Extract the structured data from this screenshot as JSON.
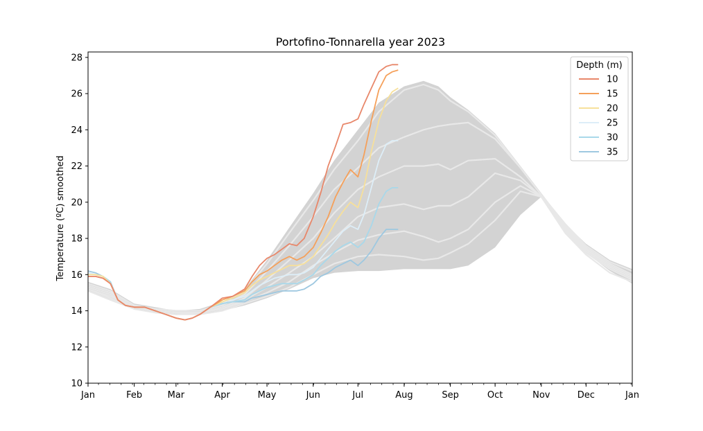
{
  "chart_data": {
    "type": "line",
    "title": "Portofino-Tonnarella year 2023",
    "xlabel": "",
    "ylabel": "Temperature (ºC) smoothed",
    "xlim": [
      0,
      365
    ],
    "ylim": [
      10,
      28.3
    ],
    "yticks": [
      10,
      12,
      14,
      16,
      18,
      20,
      22,
      24,
      26,
      28
    ],
    "xticks": [
      {
        "day": 0,
        "label": "Jan"
      },
      {
        "day": 31,
        "label": "Feb"
      },
      {
        "day": 59,
        "label": "Mar"
      },
      {
        "day": 90,
        "label": "Apr"
      },
      {
        "day": 120,
        "label": "May"
      },
      {
        "day": 151,
        "label": "Jun"
      },
      {
        "day": 181,
        "label": "Jul"
      },
      {
        "day": 212,
        "label": "Aug"
      },
      {
        "day": 243,
        "label": "Sep"
      },
      {
        "day": 273,
        "label": "Oct"
      },
      {
        "day": 304,
        "label": "Nov"
      },
      {
        "day": 334,
        "label": "Dec"
      },
      {
        "day": 365,
        "label": "Jan"
      }
    ],
    "legend": {
      "title": "Depth (m)",
      "placement": "top-right"
    },
    "envelope": {
      "color": "#d3d3d3",
      "x": [
        0,
        15,
        31,
        45,
        59,
        75,
        90,
        105,
        120,
        135,
        151,
        165,
        181,
        195,
        212,
        225,
        235,
        243,
        255,
        273,
        290,
        304,
        320,
        334,
        350,
        365
      ],
      "upper": [
        15.6,
        15.2,
        14.4,
        14.2,
        14.0,
        14.1,
        14.5,
        15.2,
        16.8,
        18.6,
        20.5,
        22.3,
        24.0,
        25.5,
        26.4,
        26.7,
        26.4,
        25.8,
        25.1,
        23.8,
        22.0,
        20.5,
        18.8,
        17.7,
        16.8,
        16.3
      ],
      "lower": [
        15.1,
        14.6,
        14.1,
        13.9,
        13.8,
        13.8,
        14.0,
        14.3,
        14.7,
        15.2,
        15.8,
        16.1,
        16.2,
        16.2,
        16.3,
        16.3,
        16.3,
        16.3,
        16.5,
        17.5,
        19.3,
        20.3,
        18.8,
        17.2,
        16.2,
        15.5
      ]
    },
    "climatology_lines": {
      "color": "#e8e8e8",
      "x": [
        0,
        15,
        31,
        45,
        59,
        75,
        90,
        105,
        120,
        135,
        151,
        165,
        181,
        195,
        212,
        225,
        235,
        243,
        255,
        273,
        290,
        304,
        320,
        334,
        350,
        365
      ],
      "lines": [
        [
          15.5,
          15.1,
          14.3,
          14.1,
          14.0,
          14.0,
          14.4,
          15.1,
          16.6,
          18.3,
          20.1,
          21.8,
          23.4,
          25.0,
          26.2,
          26.5,
          26.2,
          25.6,
          25.0,
          23.7,
          21.9,
          20.4,
          18.8,
          17.6,
          16.7,
          16.2
        ],
        [
          15.4,
          15.0,
          14.3,
          14.1,
          14.0,
          14.0,
          14.3,
          14.9,
          16.2,
          17.6,
          19.2,
          20.7,
          21.9,
          23.0,
          23.6,
          24.0,
          24.2,
          24.3,
          24.4,
          23.5,
          21.9,
          20.4,
          18.7,
          17.5,
          16.6,
          16.0
        ],
        [
          15.3,
          14.9,
          14.2,
          14.0,
          13.9,
          13.9,
          14.2,
          14.7,
          15.7,
          16.8,
          18.0,
          19.4,
          20.7,
          21.4,
          22.0,
          22.0,
          22.1,
          21.8,
          22.3,
          22.4,
          21.4,
          20.3,
          18.6,
          17.4,
          16.5,
          15.9
        ],
        [
          15.2,
          14.8,
          14.2,
          14.0,
          13.9,
          13.9,
          14.1,
          14.6,
          15.3,
          16.1,
          17.0,
          18.0,
          19.2,
          19.7,
          19.9,
          19.6,
          19.8,
          19.8,
          20.3,
          21.6,
          21.2,
          20.3,
          18.5,
          17.3,
          16.4,
          15.8
        ],
        [
          15.2,
          14.7,
          14.1,
          13.9,
          13.8,
          13.9,
          14.1,
          14.5,
          15.0,
          15.6,
          16.5,
          17.2,
          17.9,
          18.2,
          18.4,
          18.1,
          17.8,
          18.0,
          18.5,
          20.0,
          20.9,
          20.3,
          18.4,
          17.2,
          16.3,
          15.7
        ],
        [
          15.1,
          14.6,
          14.1,
          13.9,
          13.8,
          13.8,
          14.0,
          14.4,
          14.8,
          15.3,
          16.0,
          16.6,
          17.0,
          17.1,
          17.0,
          16.8,
          16.9,
          17.2,
          17.7,
          19.0,
          20.6,
          20.3,
          18.3,
          17.1,
          16.1,
          15.6
        ]
      ]
    },
    "series": [
      {
        "name": "10",
        "color": "#e8876a",
        "x": [
          0,
          5,
          10,
          15,
          20,
          25,
          31,
          38,
          45,
          52,
          59,
          65,
          70,
          75,
          82,
          90,
          97,
          105,
          110,
          115,
          120,
          125,
          130,
          135,
          140,
          145,
          151,
          156,
          161,
          166,
          171,
          176,
          181,
          185,
          190,
          195,
          200,
          204,
          208
        ],
        "y": [
          15.9,
          15.9,
          15.8,
          15.5,
          14.6,
          14.3,
          14.2,
          14.2,
          14.0,
          13.8,
          13.6,
          13.5,
          13.6,
          13.8,
          14.2,
          14.7,
          14.8,
          15.2,
          15.9,
          16.5,
          16.9,
          17.1,
          17.4,
          17.7,
          17.6,
          18.0,
          19.2,
          20.5,
          22.0,
          23.1,
          24.3,
          24.4,
          24.6,
          25.4,
          26.3,
          27.2,
          27.5,
          27.6,
          27.6
        ]
      },
      {
        "name": "15",
        "color": "#f5a05a",
        "x": [
          0,
          5,
          10,
          15,
          20,
          25,
          31,
          38,
          45,
          52,
          59,
          65,
          70,
          75,
          82,
          90,
          97,
          105,
          110,
          115,
          120,
          125,
          130,
          135,
          140,
          145,
          151,
          156,
          161,
          166,
          171,
          176,
          181,
          185,
          190,
          195,
          200,
          204,
          208
        ],
        "y": [
          15.9,
          15.9,
          15.8,
          15.5,
          14.6,
          14.3,
          14.2,
          14.2,
          14.0,
          13.8,
          13.6,
          13.5,
          13.6,
          13.8,
          14.2,
          14.6,
          14.8,
          15.1,
          15.6,
          16.0,
          16.2,
          16.5,
          16.8,
          17.0,
          16.8,
          17.0,
          17.5,
          18.3,
          19.2,
          20.3,
          21.1,
          21.8,
          21.4,
          22.6,
          24.5,
          26.2,
          27.0,
          27.2,
          27.3
        ]
      },
      {
        "name": "20",
        "color": "#f7e09a",
        "x": [
          0,
          5,
          10,
          15,
          20,
          25,
          31,
          38,
          45,
          52,
          59,
          65,
          70,
          75,
          82,
          90,
          97,
          105,
          110,
          115,
          120,
          125,
          130,
          135,
          140,
          145,
          151,
          156,
          161,
          166,
          171,
          176,
          181,
          185,
          190,
          195,
          200,
          204,
          208
        ],
        "y": [
          16.0,
          16.0,
          15.9,
          15.5,
          14.6,
          14.3,
          14.2,
          14.2,
          14.0,
          13.8,
          13.6,
          13.5,
          13.6,
          13.8,
          14.2,
          14.5,
          14.7,
          15.0,
          15.4,
          15.7,
          15.9,
          16.1,
          16.3,
          16.5,
          16.5,
          16.6,
          17.0,
          17.6,
          18.2,
          18.9,
          19.5,
          20.0,
          19.7,
          20.8,
          22.8,
          24.5,
          25.6,
          26.1,
          26.3
        ]
      },
      {
        "name": "25",
        "color": "#ddeef8",
        "x": [
          0,
          5,
          10,
          15,
          20,
          25,
          31,
          38,
          45,
          52,
          59,
          65,
          70,
          75,
          82,
          90,
          97,
          105,
          110,
          115,
          120,
          125,
          130,
          135,
          140,
          145,
          151,
          156,
          161,
          166,
          171,
          176,
          181,
          185,
          190,
          195,
          200,
          204,
          208
        ],
        "y": [
          16.1,
          16.0,
          15.9,
          15.5,
          14.6,
          14.3,
          14.2,
          14.2,
          14.0,
          13.8,
          13.6,
          13.5,
          13.6,
          13.8,
          14.2,
          14.5,
          14.6,
          14.8,
          15.1,
          15.4,
          15.6,
          15.8,
          15.9,
          16.0,
          16.0,
          16.1,
          16.4,
          16.9,
          17.4,
          17.9,
          18.4,
          18.7,
          18.5,
          19.3,
          20.8,
          22.3,
          23.2,
          23.4,
          23.4
        ]
      },
      {
        "name": "30",
        "color": "#a8d8ea",
        "x": [
          0,
          5,
          10,
          15,
          20,
          25,
          31,
          38,
          45,
          52,
          59,
          65,
          70,
          75,
          82,
          90,
          97,
          105,
          110,
          115,
          120,
          125,
          130,
          135,
          140,
          145,
          151,
          156,
          161,
          166,
          171,
          176,
          181,
          185,
          190,
          195,
          200,
          204,
          208
        ],
        "y": [
          16.1,
          16.0,
          15.9,
          15.6,
          14.6,
          14.3,
          14.2,
          14.2,
          14.0,
          13.8,
          13.6,
          13.5,
          13.6,
          13.8,
          14.2,
          14.4,
          14.5,
          14.6,
          14.9,
          15.1,
          15.3,
          15.4,
          15.5,
          15.5,
          15.5,
          15.7,
          16.0,
          16.5,
          16.9,
          17.3,
          17.6,
          17.8,
          17.5,
          17.8,
          18.7,
          19.9,
          20.6,
          20.8,
          20.8
        ]
      },
      {
        "name": "35",
        "color": "#9ec8e0",
        "x": [
          0,
          5,
          10,
          15,
          20,
          25,
          31,
          38,
          45,
          52,
          59,
          65,
          70,
          75,
          82,
          90,
          97,
          105,
          110,
          115,
          120,
          125,
          130,
          135,
          140,
          145,
          151,
          156,
          161,
          166,
          171,
          176,
          181,
          185,
          190,
          195,
          200,
          204,
          208
        ],
        "y": [
          16.2,
          16.1,
          15.9,
          15.6,
          14.6,
          14.3,
          14.2,
          14.2,
          14.0,
          13.8,
          13.6,
          13.5,
          13.6,
          13.8,
          14.2,
          14.4,
          14.5,
          14.5,
          14.7,
          14.8,
          14.9,
          15.0,
          15.1,
          15.1,
          15.1,
          15.2,
          15.5,
          15.9,
          16.1,
          16.4,
          16.6,
          16.8,
          16.5,
          16.8,
          17.3,
          18.0,
          18.5,
          18.5,
          18.5
        ]
      }
    ]
  }
}
